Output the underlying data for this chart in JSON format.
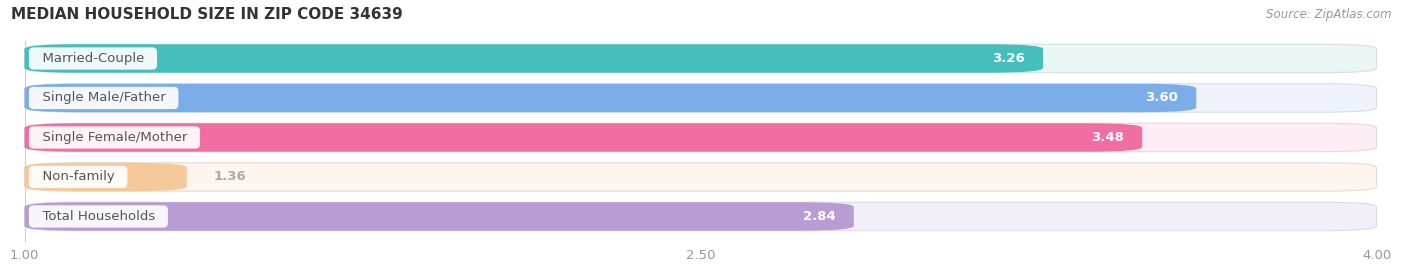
{
  "title": "MEDIAN HOUSEHOLD SIZE IN ZIP CODE 34639",
  "source": "Source: ZipAtlas.com",
  "categories": [
    "Married-Couple",
    "Single Male/Father",
    "Single Female/Mother",
    "Non-family",
    "Total Households"
  ],
  "values": [
    3.26,
    3.6,
    3.48,
    1.36,
    2.84
  ],
  "bar_colors": [
    "#45BFBE",
    "#7BAEE8",
    "#F06EA0",
    "#F5C99A",
    "#B89CD4"
  ],
  "bar_bg_colors": [
    "#EAF7F7",
    "#EEF3FC",
    "#FDEEF5",
    "#FDF5EE",
    "#F3EEF8"
  ],
  "value_label_color": "#ffffff",
  "nonfamily_value_color": "#aaaaaa",
  "xlim": [
    1.0,
    4.0
  ],
  "xticks": [
    1.0,
    2.5,
    4.0
  ],
  "bar_height": 0.72,
  "bar_gap": 0.28,
  "title_fontsize": 11,
  "label_fontsize": 9.5,
  "value_fontsize": 9.5,
  "source_fontsize": 8.5,
  "tick_fontsize": 9.5,
  "bg_color": "#ffffff"
}
